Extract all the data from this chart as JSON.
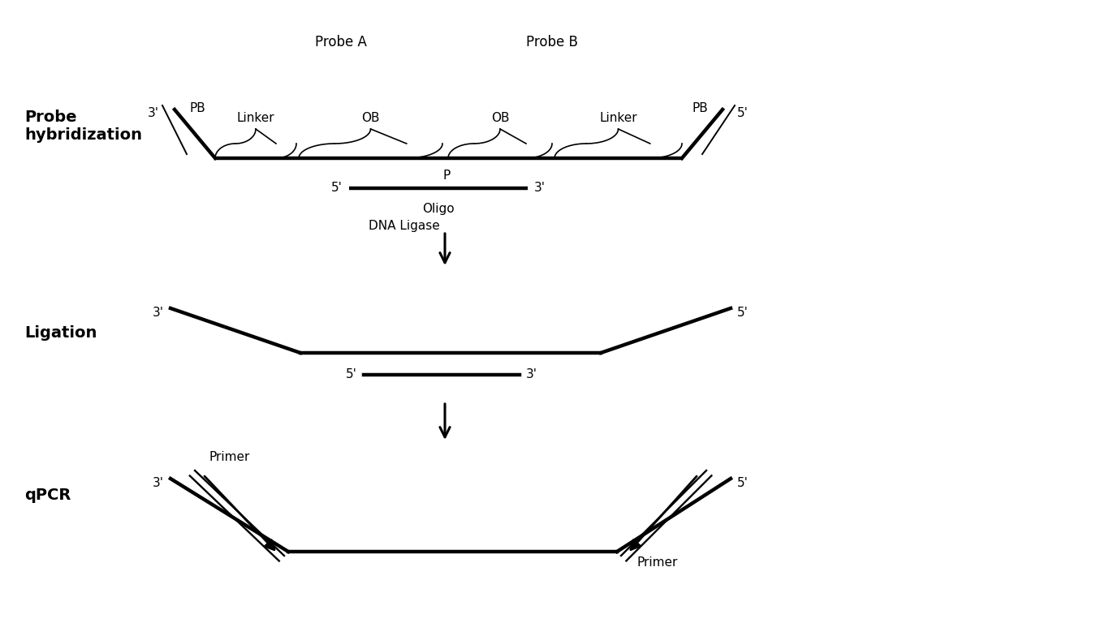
{
  "bg_color": "#ffffff",
  "line_color": "#000000",
  "thick_lw": 3.2,
  "thin_lw": 1.4,
  "label_fontsize": 12,
  "bold_fontsize": 14,
  "section_labels": [
    "Probe\nhybridization",
    "Ligation",
    "qPCR"
  ],
  "probe_a_label": "Probe A",
  "probe_b_label": "Probe B",
  "oligo_label": "Oligo",
  "dna_ligase_label": "DNA Ligase",
  "primer_label": "Primer",
  "fig_w": 13.66,
  "fig_h": 7.68,
  "dpi": 100
}
